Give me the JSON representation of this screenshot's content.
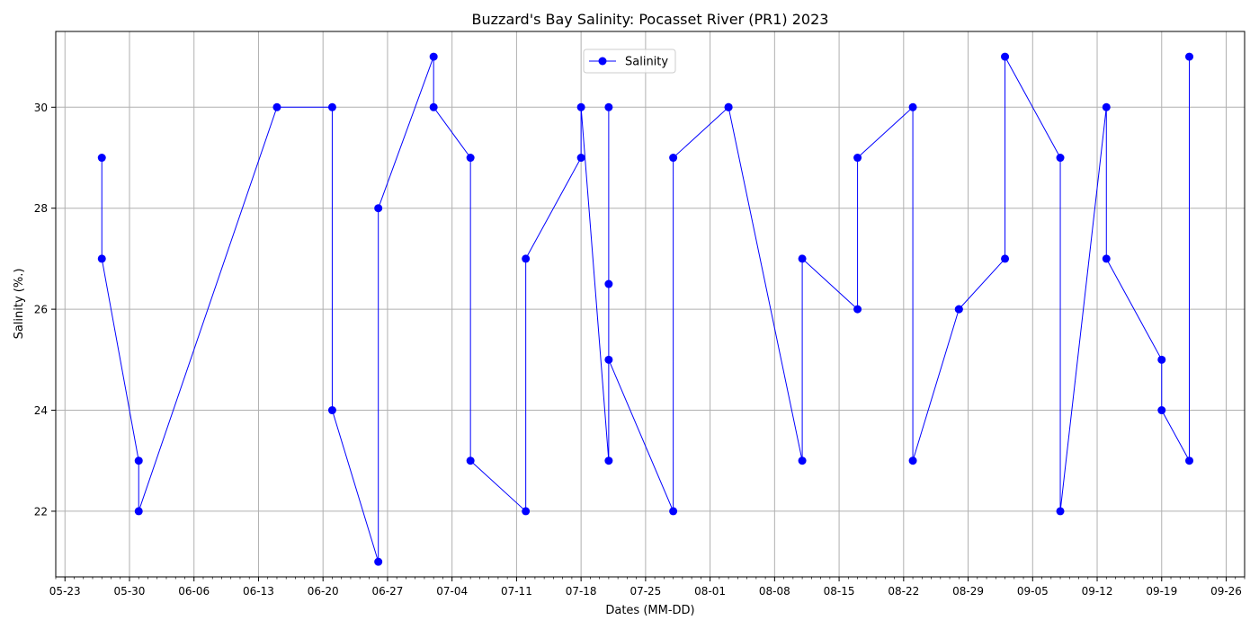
{
  "chart_data": {
    "type": "line",
    "title": "Buzzard's Bay Salinity: Pocasset River (PR1) 2023",
    "xlabel": "Dates (MM-DD)",
    "ylabel": "Salinity (%.)",
    "xlim": [
      "2023-05-22",
      "2023-09-28"
    ],
    "ylim": [
      20.7,
      31.5
    ],
    "x_ticks": [
      "2023-05-23",
      "2023-05-30",
      "2023-06-06",
      "2023-06-13",
      "2023-06-20",
      "2023-06-27",
      "2023-07-04",
      "2023-07-11",
      "2023-07-18",
      "2023-07-25",
      "2023-08-01",
      "2023-08-08",
      "2023-08-15",
      "2023-08-22",
      "2023-08-29",
      "2023-09-05",
      "2023-09-12",
      "2023-09-19",
      "2023-09-26"
    ],
    "x_tick_labels": [
      "05-23",
      "05-30",
      "06-06",
      "06-13",
      "06-20",
      "06-27",
      "07-04",
      "07-11",
      "07-18",
      "07-25",
      "08-01",
      "08-08",
      "08-15",
      "08-22",
      "08-29",
      "09-05",
      "09-12",
      "09-19",
      "09-26"
    ],
    "y_ticks": [
      22,
      24,
      26,
      28,
      30
    ],
    "y_tick_labels": [
      "22",
      "24",
      "26",
      "28",
      "30"
    ],
    "grid": true,
    "legend": {
      "placement": "upper-center"
    },
    "series": [
      {
        "name": "Salinity",
        "color": "#0000ff",
        "marker": "circle",
        "x": [
          "2023-05-27",
          "2023-05-27",
          "2023-05-31",
          "2023-05-31",
          "2023-06-15",
          "2023-06-21",
          "2023-06-21",
          "2023-06-26",
          "2023-06-26",
          "2023-07-02",
          "2023-07-02",
          "2023-07-06",
          "2023-07-06",
          "2023-07-12",
          "2023-07-12",
          "2023-07-18",
          "2023-07-18",
          "2023-07-21",
          "2023-07-21",
          "2023-07-21",
          "2023-07-21",
          "2023-07-28",
          "2023-07-28",
          "2023-08-03",
          "2023-08-03",
          "2023-08-11",
          "2023-08-11",
          "2023-08-17",
          "2023-08-17",
          "2023-08-23",
          "2023-08-23",
          "2023-08-28",
          "2023-08-28",
          "2023-09-02",
          "2023-09-02",
          "2023-09-08",
          "2023-09-08",
          "2023-09-13",
          "2023-09-13",
          "2023-09-19",
          "2023-09-19",
          "2023-09-22",
          "2023-09-22"
        ],
        "y": [
          29,
          27,
          23,
          22,
          30,
          30,
          24,
          21,
          28,
          31,
          30,
          29,
          23,
          22,
          27,
          29,
          30,
          23,
          30,
          26.5,
          25,
          22,
          29,
          30,
          30,
          23,
          27,
          26,
          29,
          30,
          23,
          26,
          26,
          27,
          31,
          29,
          22,
          30,
          27,
          25,
          24,
          23,
          31
        ]
      }
    ]
  }
}
